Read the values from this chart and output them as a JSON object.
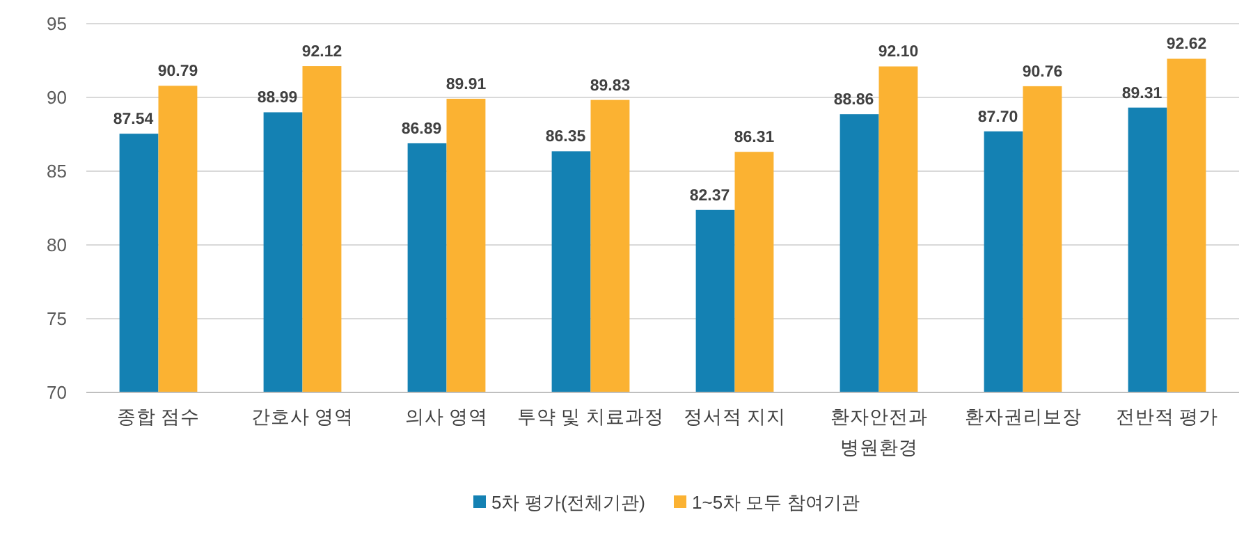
{
  "chart_data": {
    "type": "bar",
    "categories": [
      "종합 점수",
      "간호사 영역",
      "의사 영역",
      "투약 및 치료과정",
      "정서적 지지",
      "환자안전과\n병원환경",
      "환자권리보장",
      "전반적 평가"
    ],
    "series": [
      {
        "name": "5차 평가(전체기관)",
        "color": "#1481b3",
        "values": [
          87.54,
          88.99,
          86.89,
          86.35,
          82.37,
          88.86,
          87.7,
          89.31
        ],
        "value_labels": [
          "87.54",
          "88.99",
          "86.89",
          "86.35",
          "82.37",
          "88.86",
          "87.70",
          "89.31"
        ]
      },
      {
        "name": "1~5차 모두 참여기관",
        "color": "#fbb232",
        "values": [
          90.79,
          92.12,
          89.91,
          89.83,
          86.31,
          92.1,
          90.76,
          92.62
        ],
        "value_labels": [
          "90.79",
          "92.12",
          "89.91",
          "89.83",
          "86.31",
          "92.10",
          "90.76",
          "92.62"
        ]
      }
    ],
    "ylim": [
      70,
      95
    ],
    "yticks": [
      70,
      75,
      80,
      85,
      90,
      95
    ],
    "grid": "y",
    "legend": "bottom"
  }
}
